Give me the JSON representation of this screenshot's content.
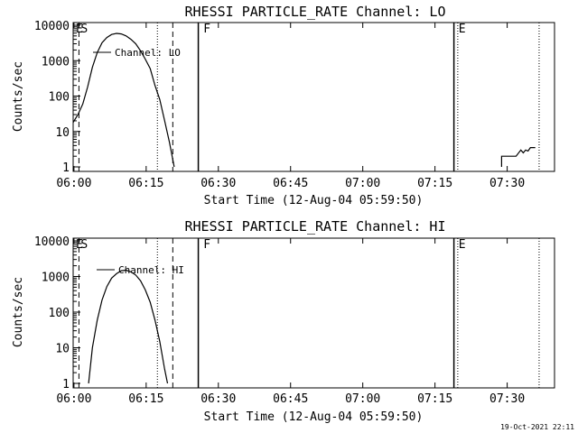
{
  "footer_date": "19-Oct-2021 22:11",
  "chart_data": [
    {
      "type": "line",
      "title": "RHESSI PARTICLE_RATE Channel: LO",
      "xlabel": "Start Time (12-Aug-04 05:59:50)",
      "ylabel": "Counts/sec",
      "y_scale": "log",
      "ylim": [
        1,
        10000
      ],
      "yticks": [
        "1",
        "10",
        "100",
        "1000",
        "10000"
      ],
      "xticks": [
        "06:00",
        "06:15",
        "06:30",
        "06:45",
        "07:00",
        "07:15",
        "07:30"
      ],
      "xlim_minutes": [
        0,
        100
      ],
      "legend": "Channel: LO",
      "series": [
        {
          "name": "Channel: LO",
          "segments": [
            [
              [
                0,
                18
              ],
              [
                1,
                30
              ],
              [
                2,
                60
              ],
              [
                3,
                180
              ],
              [
                4,
                650
              ],
              [
                5,
                1700
              ],
              [
                6,
                3200
              ],
              [
                7,
                4500
              ],
              [
                8,
                5500
              ],
              [
                9,
                5900
              ],
              [
                10,
                5700
              ],
              [
                11,
                5000
              ],
              [
                12,
                4000
              ],
              [
                13,
                3000
              ],
              [
                14,
                1900
              ],
              [
                15,
                1100
              ],
              [
                16,
                600
              ],
              [
                17,
                200
              ],
              [
                18,
                80
              ],
              [
                19,
                20
              ],
              [
                20,
                5
              ],
              [
                21,
                1
              ]
            ],
            [
              [
                89,
                1
              ],
              [
                89,
                2
              ],
              [
                92,
                2
              ],
              [
                93,
                3
              ],
              [
                93.5,
                2.5
              ],
              [
                94,
                3
              ],
              [
                94.5,
                2.8
              ],
              [
                95,
                3.5
              ],
              [
                96,
                3.5
              ]
            ]
          ]
        }
      ],
      "markers": {
        "labels": [
          {
            "text": "E",
            "t": 0
          },
          {
            "text": "S",
            "t": 1
          },
          {
            "text": "F",
            "t": 26.5
          },
          {
            "text": "E",
            "t": 79.5
          }
        ],
        "dashed": [
          1.2,
          20.7
        ],
        "dotted": [
          17.5,
          79.9,
          96.8
        ],
        "solid": [
          26,
          79.1
        ]
      }
    },
    {
      "type": "line",
      "title": "RHESSI PARTICLE_RATE Channel: HI",
      "xlabel": "Start Time (12-Aug-04 05:59:50)",
      "ylabel": "Counts/sec",
      "y_scale": "log",
      "ylim": [
        1,
        10000
      ],
      "yticks": [
        "1",
        "10",
        "100",
        "1000",
        "10000"
      ],
      "xticks": [
        "06:00",
        "06:15",
        "06:30",
        "06:45",
        "07:00",
        "07:15",
        "07:30"
      ],
      "xlim_minutes": [
        0,
        100
      ],
      "legend": "Channel: HI",
      "series": [
        {
          "name": "Channel: HI",
          "segments": [
            [
              [
                3.2,
                1
              ],
              [
                4,
                10
              ],
              [
                5,
                60
              ],
              [
                6,
                220
              ],
              [
                7,
                520
              ],
              [
                8,
                900
              ],
              [
                9,
                1200
              ],
              [
                10,
                1450
              ],
              [
                11,
                1500
              ],
              [
                12,
                1350
              ],
              [
                13,
                1100
              ],
              [
                14,
                760
              ],
              [
                15,
                420
              ],
              [
                16,
                190
              ],
              [
                17,
                60
              ],
              [
                18,
                15
              ],
              [
                19,
                2.5
              ],
              [
                19.6,
                1
              ]
            ]
          ]
        }
      ],
      "markers": {
        "labels": [
          {
            "text": "E",
            "t": 0
          },
          {
            "text": "S",
            "t": 1
          },
          {
            "text": "F",
            "t": 26.5
          },
          {
            "text": "E",
            "t": 79.5
          }
        ],
        "dashed": [
          1.2,
          20.7
        ],
        "dotted": [
          17.5,
          79.9,
          96.8
        ],
        "solid": [
          26,
          79.1
        ]
      }
    }
  ]
}
